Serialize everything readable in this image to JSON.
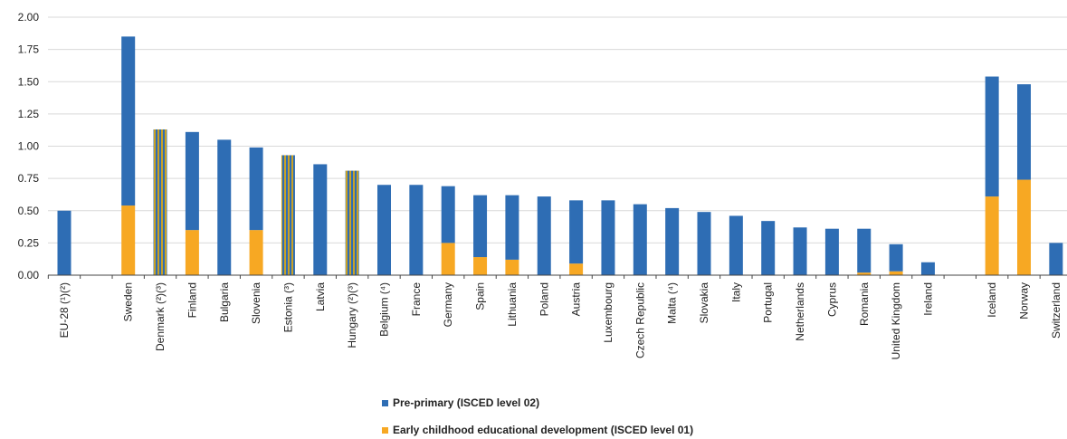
{
  "chart_data": {
    "type": "bar",
    "stacked": true,
    "ylim": [
      0,
      2.0
    ],
    "yticks": [
      "0.00",
      "0.25",
      "0.50",
      "0.75",
      "1.00",
      "1.25",
      "1.50",
      "1.75",
      "2.00"
    ],
    "grid": true,
    "legend_position": "bottom",
    "colors": {
      "pre_primary": "#2e6db4",
      "early_childhood": "#f7a823",
      "grid": "#d9d9d9",
      "axis": "#444444"
    },
    "categories": [
      "EU-28 (¹)(²)",
      "",
      "Sweden",
      "Denmark (²)(³)",
      "Finland",
      "Bulgaria",
      "Slovenia",
      "Estonia (³)",
      "Latvia",
      "Hungary (²)(³)",
      "Belgium (⁴)",
      "France",
      "Germany",
      "Spain",
      "Lithuania",
      "Poland",
      "Austria",
      "Luxembourg",
      "Czech Republic",
      "Malta (⁴)",
      "Slovakia",
      "Italy",
      "Portugal",
      "Netherlands",
      "Cyprus",
      "Romania",
      "United Kingdom",
      "Ireland",
      "",
      "Iceland",
      "Norway",
      "Switzerland"
    ],
    "undivided": [
      false,
      false,
      false,
      true,
      false,
      false,
      false,
      true,
      false,
      true,
      false,
      false,
      false,
      false,
      false,
      false,
      false,
      false,
      false,
      false,
      false,
      false,
      false,
      false,
      false,
      false,
      false,
      false,
      false,
      false,
      false,
      false
    ],
    "series": [
      {
        "name": "Early childhood educational development (ISCED level 01)",
        "values": [
          0,
          0,
          0.54,
          0,
          0.35,
          0,
          0.35,
          0,
          0,
          0,
          0,
          0,
          0.25,
          0.14,
          0.12,
          0,
          0.09,
          0,
          0,
          0,
          0,
          0,
          0,
          0,
          0,
          0.02,
          0.03,
          0,
          0,
          0.61,
          0.74,
          0
        ]
      },
      {
        "name": "Pre-primary  (ISCED level 02)",
        "values": [
          0.5,
          0,
          1.31,
          0,
          0.76,
          1.05,
          0.64,
          0,
          0.86,
          0,
          0.7,
          0.7,
          0.44,
          0.48,
          0.5,
          0.61,
          0.49,
          0.58,
          0.55,
          0.52,
          0.49,
          0.46,
          0.42,
          0.37,
          0.36,
          0.34,
          0.21,
          0.1,
          0,
          0.93,
          0.74,
          0.25
        ]
      }
    ],
    "undivided_totals": [
      0,
      0,
      0,
      1.13,
      0,
      0,
      0,
      0.93,
      0,
      0.81,
      0,
      0,
      0,
      0,
      0,
      0,
      0,
      0,
      0,
      0,
      0,
      0,
      0,
      0,
      0,
      0,
      0,
      0,
      0,
      0,
      0,
      0
    ],
    "legend": [
      {
        "label": "Pre-primary  (ISCED level 02)",
        "color": "#2e6db4"
      },
      {
        "label": "Early childhood educational development (ISCED level 01)",
        "color": "#f7a823"
      }
    ]
  }
}
